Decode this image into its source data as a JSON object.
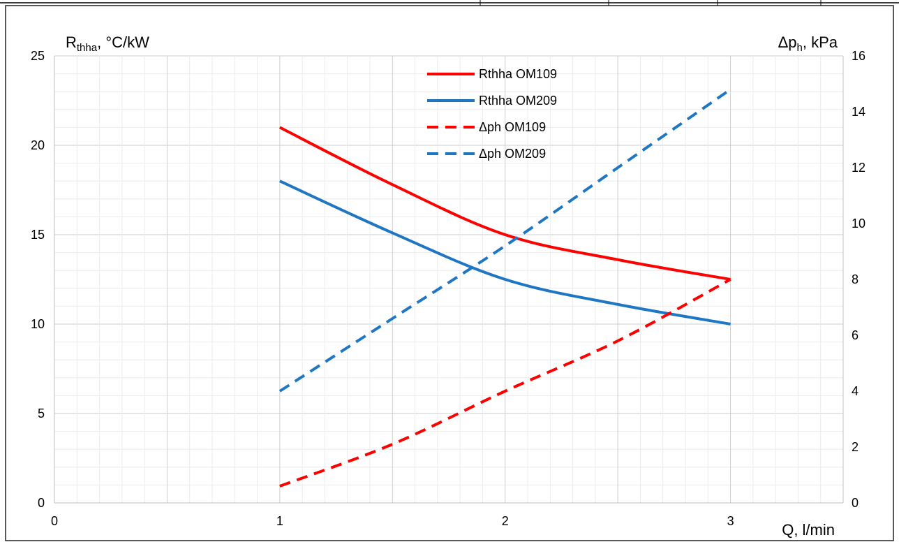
{
  "chart_data": {
    "type": "line",
    "title": "",
    "xlabel": "Q, l/min",
    "ylabel_left": {
      "main": "R",
      "sub": "thha",
      "rest": ", °C/kW"
    },
    "ylabel_right": {
      "main": "Δp",
      "sub": "h",
      "rest": ", kPa"
    },
    "xlim": [
      0,
      3.5
    ],
    "ylim_left": [
      0,
      25
    ],
    "ylim_right": [
      0,
      16
    ],
    "x_ticks": [
      "0",
      "1",
      "2",
      "3"
    ],
    "y_left_ticks": [
      "0",
      "5",
      "10",
      "15",
      "20",
      "25"
    ],
    "y_right_ticks": [
      "0",
      "2",
      "4",
      "6",
      "8",
      "10",
      "12",
      "14",
      "16"
    ],
    "grid": true,
    "legend_position": "top-center",
    "series": [
      {
        "name": "Rthha OM109",
        "axis": "left",
        "style": "solid",
        "color": "#ff0000",
        "x": [
          1,
          1.5,
          2,
          2.5,
          3
        ],
        "y": [
          21,
          17.8,
          15,
          13.6,
          12.5
        ]
      },
      {
        "name": "Rthha OM209",
        "axis": "left",
        "style": "solid",
        "color": "#1f77c4",
        "x": [
          1,
          1.5,
          2,
          2.5,
          3
        ],
        "y": [
          18,
          15.1,
          12.5,
          11.1,
          10
        ]
      },
      {
        "name": "Δph OM109",
        "axis": "right",
        "style": "dashed",
        "color": "#ff0000",
        "x": [
          1,
          1.5,
          2,
          2.5,
          3
        ],
        "y": [
          0.6,
          2.1,
          4,
          5.8,
          8
        ]
      },
      {
        "name": "Δph OM209",
        "axis": "right",
        "style": "dashed",
        "color": "#1f77c4",
        "x": [
          1,
          1.5,
          2,
          2.5,
          3
        ],
        "y": [
          4,
          6.6,
          9.2,
          12,
          14.8
        ]
      }
    ]
  }
}
